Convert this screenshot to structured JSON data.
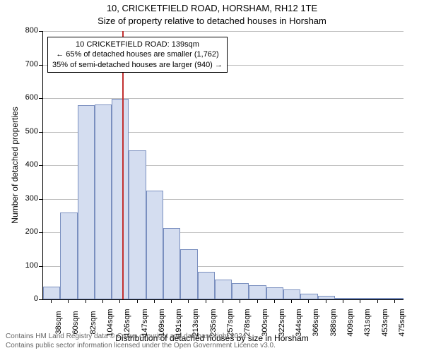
{
  "title_line1": "10, CRICKETFIELD ROAD, HORSHAM, RH12 1TE",
  "title_line2": "Size of property relative to detached houses in Horsham",
  "chart": {
    "type": "histogram",
    "y_axis": {
      "title": "Number of detached properties",
      "min": 0,
      "max": 800,
      "tick_step": 100,
      "fontsize": 11
    },
    "x_axis": {
      "title": "Distribution of detached houses by size in Horsham",
      "labels": [
        "38sqm",
        "60sqm",
        "82sqm",
        "104sqm",
        "126sqm",
        "147sqm",
        "169sqm",
        "191sqm",
        "213sqm",
        "235sqm",
        "257sqm",
        "278sqm",
        "300sqm",
        "322sqm",
        "344sqm",
        "366sqm",
        "388sqm",
        "409sqm",
        "431sqm",
        "453sqm",
        "475sqm"
      ],
      "fontsize": 11
    },
    "bars": {
      "values": [
        38,
        260,
        578,
        582,
        598,
        444,
        325,
        212,
        150,
        82,
        58,
        48,
        42,
        36,
        30,
        16,
        10,
        4,
        3,
        2,
        1
      ],
      "fill_color": "#d4ddf0",
      "border_color": "#7a8fbf",
      "bar_width_fraction": 1.0
    },
    "grid": {
      "color": "#bfbfbf"
    },
    "reference_line": {
      "color": "#c23030",
      "category_index_after": 4,
      "fraction_into_next": 0.6
    },
    "annotation": {
      "line1": "10 CRICKETFIELD ROAD: 139sqm",
      "line2": "← 65% of detached houses are smaller (1,762)",
      "line3": "35% of semi-detached houses are larger (940) →",
      "border_color": "#000000",
      "background_color": "#ffffff"
    },
    "plot_background": "#ffffff"
  },
  "footer": {
    "line1": "Contains HM Land Registry data © Crown copyright and database right 2024.",
    "line2": "Contains public sector information licensed under the Open Government Licence v3.0.",
    "color": "#666666"
  }
}
